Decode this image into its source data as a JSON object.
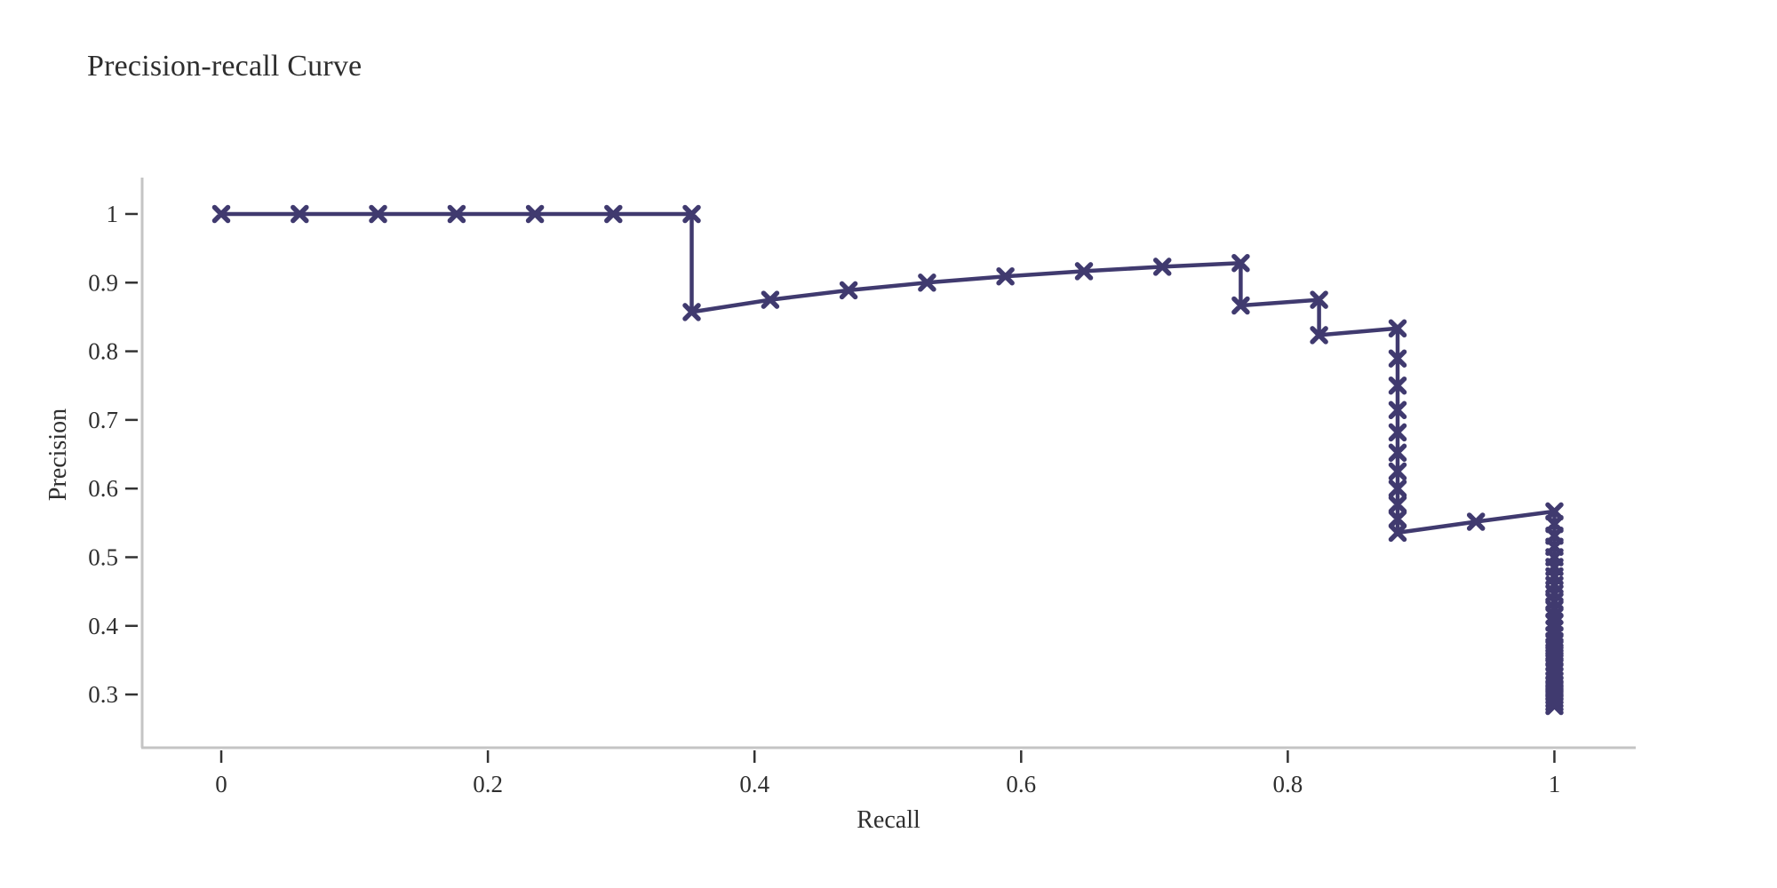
{
  "chart_data": {
    "type": "line",
    "title": "Precision-recall Curve",
    "xlabel": "Recall",
    "ylabel": "Precision",
    "grid": false,
    "legend": "none",
    "marker": "x",
    "xlim": [
      -0.06,
      1.061
    ],
    "ylim": [
      0.2225,
      1.053
    ],
    "x_ticks": {
      "values": [
        0,
        0.2,
        0.4,
        0.6,
        0.8,
        1
      ],
      "labels": [
        "0",
        "0.2",
        "0.4",
        "0.6",
        "0.8",
        "1"
      ]
    },
    "y_ticks": {
      "values": [
        0.3,
        0.4,
        0.5,
        0.6,
        0.7,
        0.8,
        0.9,
        1
      ],
      "labels": [
        "0.3",
        "0.4",
        "0.5",
        "0.6",
        "0.7",
        "0.8",
        "0.9",
        "1"
      ]
    },
    "series": [
      {
        "color": "#403a6f",
        "points": [
          [
            0,
            1
          ],
          [
            0.0588,
            1
          ],
          [
            0.1176,
            1
          ],
          [
            0.1765,
            1
          ],
          [
            0.2353,
            1
          ],
          [
            0.2941,
            1
          ],
          [
            0.3529,
            1
          ],
          [
            0.3529,
            0.8571
          ],
          [
            0.4118,
            0.875
          ],
          [
            0.4706,
            0.8889
          ],
          [
            0.5294,
            0.9
          ],
          [
            0.5882,
            0.9091
          ],
          [
            0.6471,
            0.9167
          ],
          [
            0.7059,
            0.9231
          ],
          [
            0.7647,
            0.9286
          ],
          [
            0.7647,
            0.8667
          ],
          [
            0.8235,
            0.875
          ],
          [
            0.8235,
            0.8235
          ],
          [
            0.8824,
            0.8333
          ],
          [
            0.8824,
            0.7895
          ],
          [
            0.8824,
            0.75
          ],
          [
            0.8824,
            0.7143
          ],
          [
            0.8824,
            0.6818
          ],
          [
            0.8824,
            0.6522
          ],
          [
            0.8824,
            0.625
          ],
          [
            0.8824,
            0.6
          ],
          [
            0.8824,
            0.5769
          ],
          [
            0.8824,
            0.5556
          ],
          [
            0.8824,
            0.5357
          ],
          [
            0.9412,
            0.5517
          ],
          [
            1,
            0.5667
          ],
          [
            1,
            0.5484
          ],
          [
            1,
            0.5313
          ],
          [
            1,
            0.5152
          ],
          [
            1,
            0.5
          ],
          [
            1,
            0.4857
          ],
          [
            1,
            0.4722
          ],
          [
            1,
            0.4595
          ],
          [
            1,
            0.4474
          ],
          [
            1,
            0.4359
          ],
          [
            1,
            0.425
          ],
          [
            1,
            0.4146
          ],
          [
            1,
            0.4048
          ],
          [
            1,
            0.3953
          ],
          [
            1,
            0.3864
          ],
          [
            1,
            0.3778
          ],
          [
            1,
            0.3696
          ],
          [
            1,
            0.3617
          ],
          [
            1,
            0.3542
          ],
          [
            1,
            0.3469
          ],
          [
            1,
            0.34
          ],
          [
            1,
            0.3333
          ],
          [
            1,
            0.3269
          ],
          [
            1,
            0.3208
          ],
          [
            1,
            0.3148
          ],
          [
            1,
            0.3091
          ],
          [
            1,
            0.3036
          ],
          [
            1,
            0.2982
          ],
          [
            1,
            0.2931
          ],
          [
            1,
            0.2881
          ],
          [
            1,
            0.2833
          ]
        ]
      }
    ],
    "colors": {
      "line": "#403a6f",
      "axis_line": "#c4c4c4",
      "tick_mark": "#333333",
      "tick_label": "#2f2f2f",
      "title_text": "#2e2e2e"
    }
  }
}
